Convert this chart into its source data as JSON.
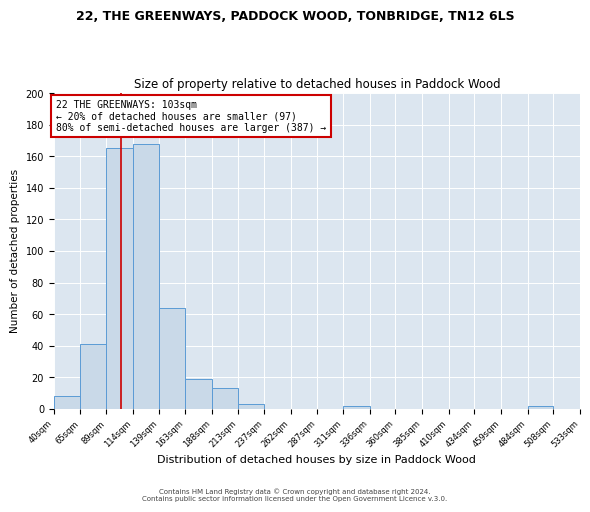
{
  "title": "22, THE GREENWAYS, PADDOCK WOOD, TONBRIDGE, TN12 6LS",
  "subtitle": "Size of property relative to detached houses in Paddock Wood",
  "xlabel": "Distribution of detached houses by size in Paddock Wood",
  "ylabel": "Number of detached properties",
  "bin_edges": [
    40,
    65,
    89,
    114,
    139,
    163,
    188,
    213,
    237,
    262,
    287,
    311,
    336,
    360,
    385,
    410,
    434,
    459,
    484,
    508,
    533
  ],
  "bar_heights": [
    8,
    41,
    165,
    168,
    64,
    19,
    13,
    3,
    0,
    0,
    0,
    2,
    0,
    0,
    0,
    0,
    0,
    0,
    2,
    0
  ],
  "bar_color": "#c9d9e8",
  "bar_edge_color": "#5b9bd5",
  "red_line_x": 103,
  "red_line_color": "#cc0000",
  "annotation_text": "22 THE GREENWAYS: 103sqm\n← 20% of detached houses are smaller (97)\n80% of semi-detached houses are larger (387) →",
  "annotation_box_color": "#ffffff",
  "annotation_box_edge": "#cc0000",
  "ylim": [
    0,
    200
  ],
  "yticks": [
    0,
    20,
    40,
    60,
    80,
    100,
    120,
    140,
    160,
    180,
    200
  ],
  "background_color": "#dce6f0",
  "footer_line1": "Contains HM Land Registry data © Crown copyright and database right 2024.",
  "footer_line2": "Contains public sector information licensed under the Open Government Licence v.3.0.",
  "title_fontsize": 9,
  "subtitle_fontsize": 8.5,
  "ylabel_fontsize": 7.5,
  "xlabel_fontsize": 8,
  "ytick_fontsize": 7,
  "xtick_fontsize": 6,
  "annotation_fontsize": 7,
  "footer_fontsize": 5
}
